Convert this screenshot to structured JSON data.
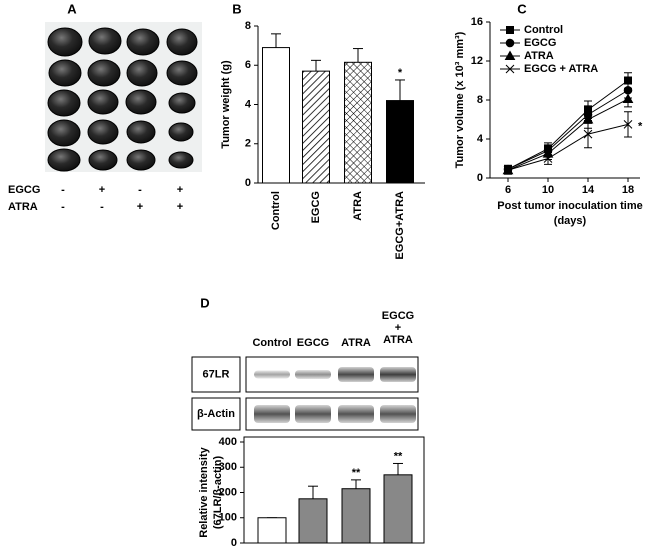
{
  "panel_a": {
    "label": "A",
    "rows": [
      {
        "name": "EGCG",
        "signs": [
          "-",
          "+",
          "-",
          "+"
        ]
      },
      {
        "name": "ATRA",
        "signs": [
          "-",
          "-",
          "+",
          "+"
        ]
      }
    ]
  },
  "chart_data": [
    {
      "type": "bar",
      "label": "B",
      "ylabel": "Tumor weight (g)",
      "categories": [
        "Control",
        "EGCG",
        "ATRA",
        "EGCG+ATRA"
      ],
      "values": [
        6.9,
        5.7,
        6.15,
        4.2
      ],
      "errors": [
        0.7,
        0.55,
        0.7,
        1.05
      ],
      "fills": [
        "white",
        "hatch",
        "cross",
        "black"
      ],
      "annotations": [
        null,
        null,
        null,
        "*"
      ],
      "ylim": [
        0,
        8
      ],
      "yticks": [
        0,
        2,
        4,
        6,
        8
      ]
    },
    {
      "type": "line",
      "label": "C",
      "ylabel": "Tumor volume (x 10³ mm³)",
      "xlabel": [
        "Post tumor inoculation time",
        "(days)"
      ],
      "x": [
        6,
        10,
        14,
        18
      ],
      "xlim": [
        6,
        18
      ],
      "xticks": [
        6,
        10,
        14,
        18
      ],
      "ylim": [
        0,
        16
      ],
      "yticks": [
        0,
        4,
        8,
        12,
        16
      ],
      "legend": "upper left",
      "series": [
        {
          "name": "Control",
          "color": "#000000",
          "marker": "square",
          "values": [
            0.9,
            3.0,
            7.0,
            10.0
          ],
          "errors": [
            0.4,
            0.6,
            0.9,
            0.8
          ]
        },
        {
          "name": "EGCG",
          "color": "#000000",
          "marker": "circle",
          "values": [
            0.9,
            2.8,
            6.5,
            9.0
          ],
          "errors": [
            0.4,
            0.6,
            0.9,
            0.8
          ]
        },
        {
          "name": "ATRA",
          "color": "#000000",
          "marker": "triangle",
          "values": [
            0.8,
            2.5,
            6.0,
            8.1
          ],
          "errors": [
            0.4,
            0.6,
            0.9,
            0.8
          ]
        },
        {
          "name": "EGCG + ATRA",
          "color": "#000000",
          "marker": "x",
          "values": [
            0.8,
            2.0,
            4.5,
            5.5
          ],
          "errors": [
            0.4,
            0.6,
            1.4,
            1.3
          ]
        }
      ],
      "annotations": [
        null,
        null,
        null,
        "*"
      ]
    },
    {
      "type": "bar",
      "label": "D",
      "ylabel": [
        "Relative intensity",
        "(67LR/β-actin)"
      ],
      "categories": [
        "Control",
        "EGCG",
        "ATRA",
        [
          "EGCG",
          "+",
          "ATRA"
        ]
      ],
      "blots": [
        "67LR",
        "β-Actin"
      ],
      "values": [
        100,
        175,
        215,
        270
      ],
      "errors": [
        0,
        50,
        35,
        45
      ],
      "fills": [
        "white",
        "#888888",
        "#888888",
        "#888888"
      ],
      "annotations": [
        null,
        null,
        "**",
        "**"
      ],
      "ylim": [
        0,
        400
      ],
      "yticks": [
        0,
        100,
        200,
        300,
        400
      ]
    }
  ]
}
